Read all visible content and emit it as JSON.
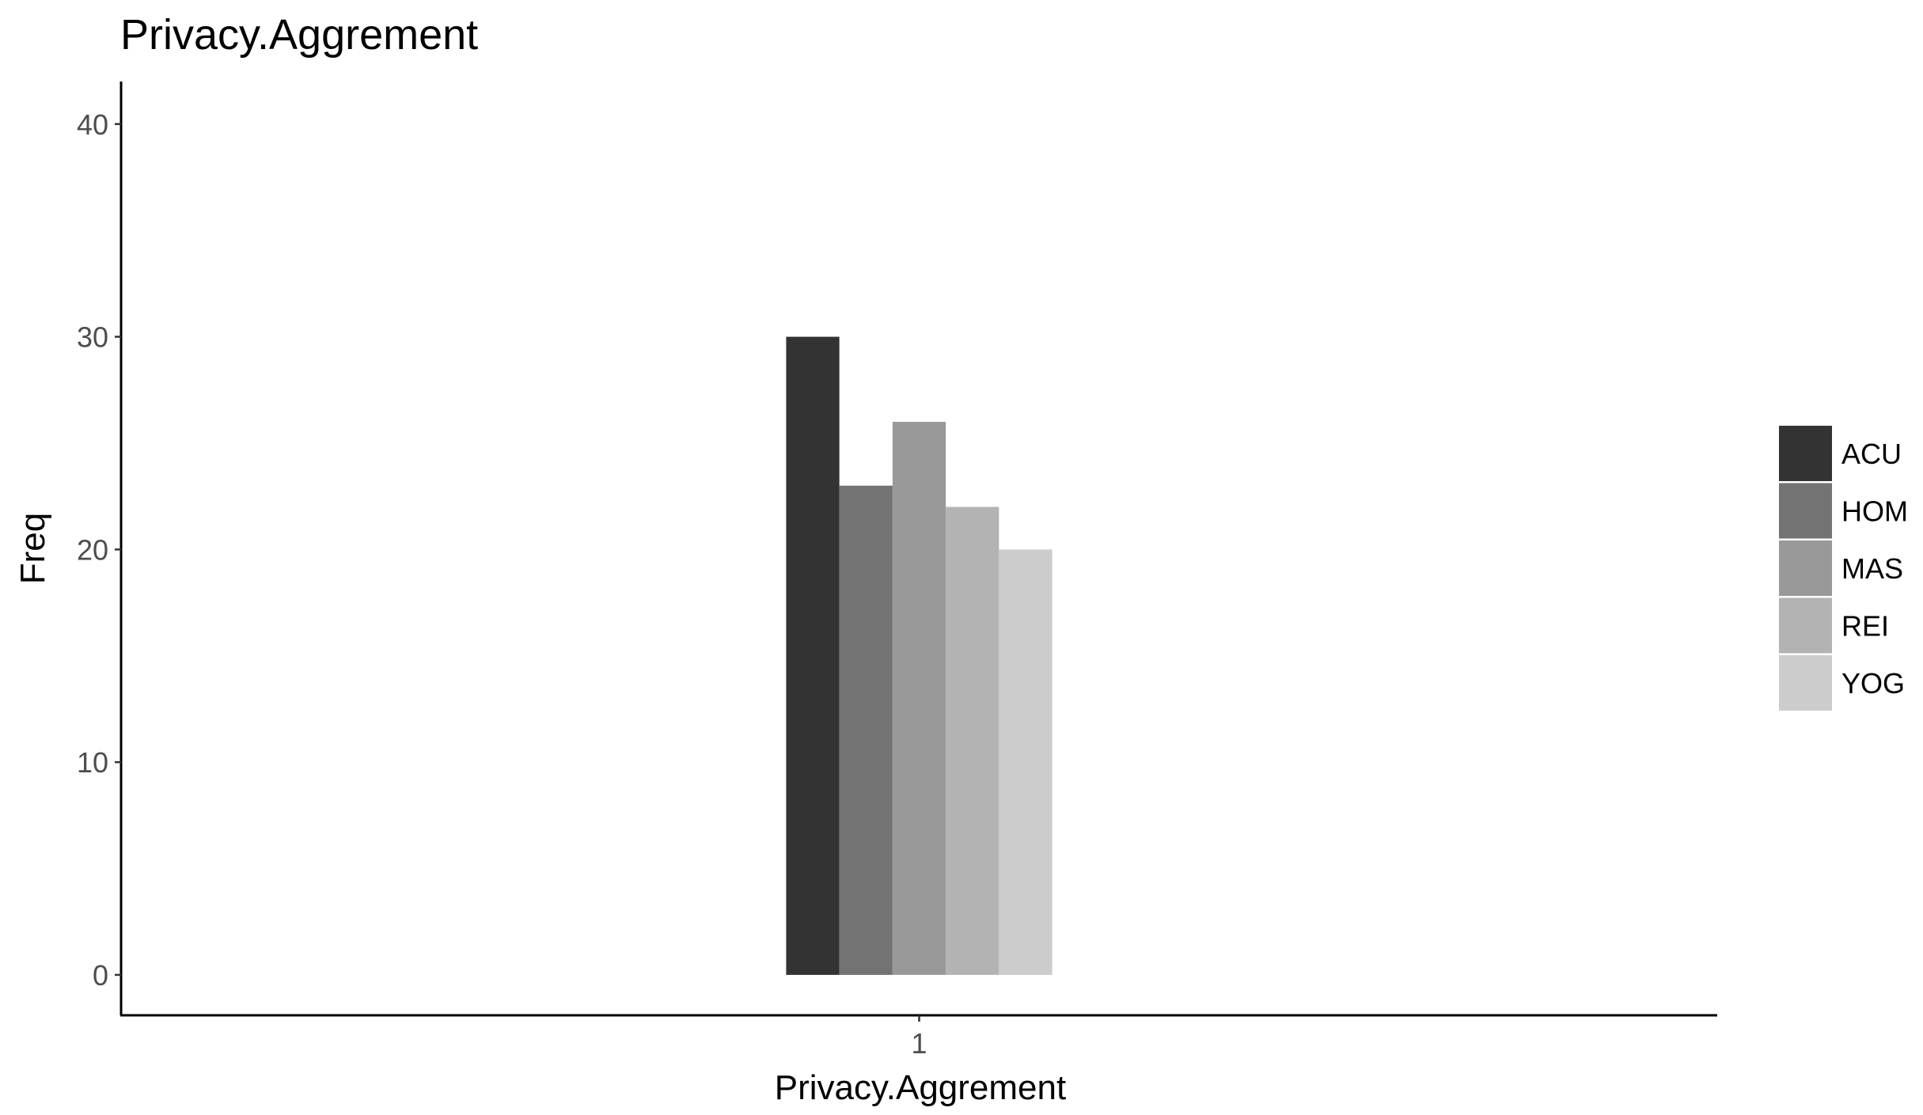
{
  "chart_data": {
    "type": "bar",
    "title": "Privacy.Aggrement",
    "xlabel": "Privacy.Aggrement",
    "ylabel": "Freq",
    "categories": [
      "1"
    ],
    "ylim": [
      -1.9,
      42
    ],
    "yticks": [
      0,
      10,
      20,
      30,
      40
    ],
    "grid": false,
    "legend_position": "right",
    "series": [
      {
        "name": "ACU",
        "values": [
          30
        ],
        "color": "#333333"
      },
      {
        "name": "HOM",
        "values": [
          23
        ],
        "color": "#737373"
      },
      {
        "name": "MAS",
        "values": [
          26
        ],
        "color": "#999999"
      },
      {
        "name": "REI",
        "values": [
          22
        ],
        "color": "#b3b3b3"
      },
      {
        "name": "YOG",
        "values": [
          20
        ],
        "color": "#cccccc"
      }
    ]
  }
}
